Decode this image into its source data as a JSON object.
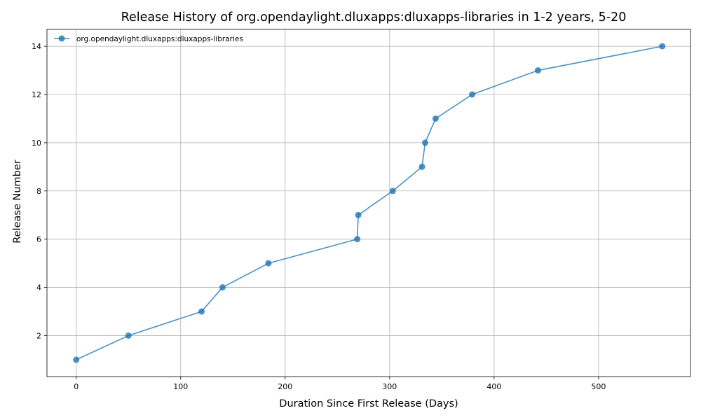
{
  "chart_data": {
    "type": "line",
    "title": "Release History of org.opendaylight.dluxapps:dluxapps-libraries in 1-2 years, 5-20",
    "xlabel": "Duration Since First Release (Days)",
    "ylabel": "Release Number",
    "xlim": [
      -28,
      588
    ],
    "ylim": [
      0.3,
      14.7
    ],
    "xticks": [
      0,
      100,
      200,
      300,
      400,
      500
    ],
    "yticks": [
      2,
      4,
      6,
      8,
      10,
      12,
      14
    ],
    "grid": true,
    "legend_position": "upper-left",
    "series": [
      {
        "name": "org.opendaylight.dluxapps:dluxapps-libraries",
        "color": "#1f77b4",
        "marker": "circle",
        "x": [
          0,
          50,
          120,
          140,
          184,
          269,
          270,
          303,
          331,
          334,
          344,
          379,
          442,
          561
        ],
        "y": [
          1,
          2,
          3,
          4,
          5,
          6,
          7,
          8,
          9,
          10,
          11,
          12,
          13,
          14
        ]
      }
    ]
  }
}
